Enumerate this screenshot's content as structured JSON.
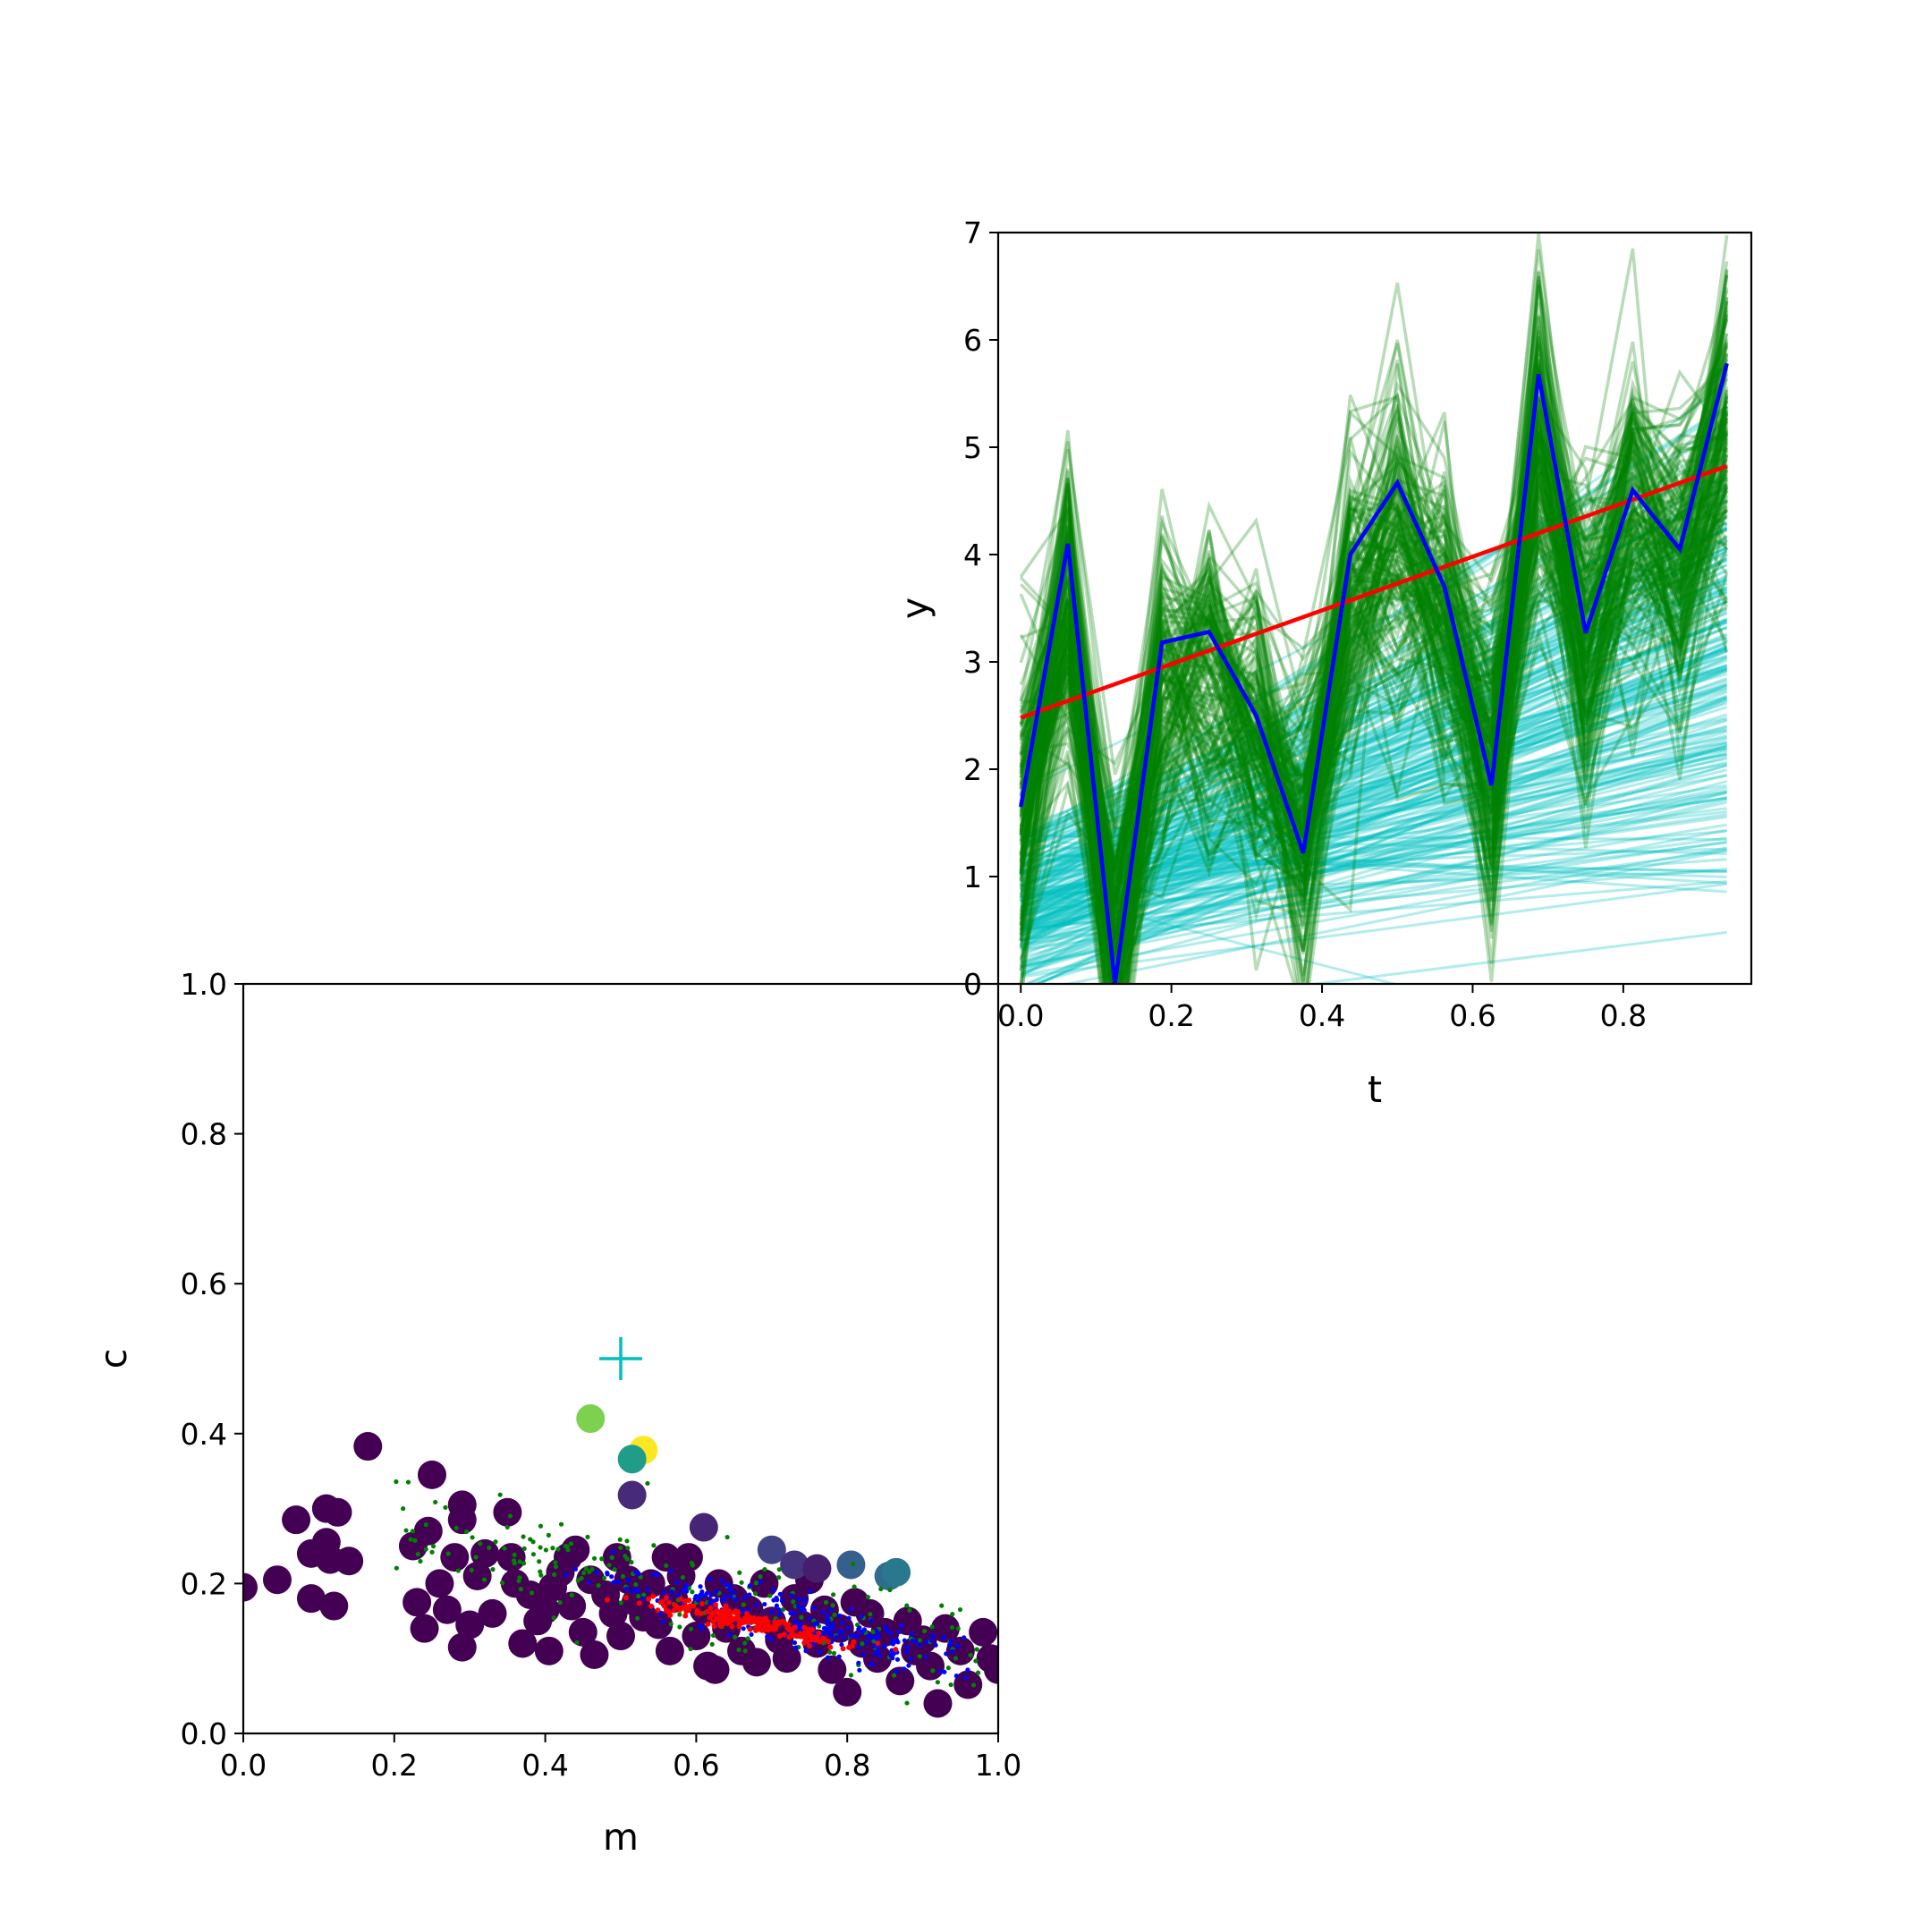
{
  "chart_data": [
    {
      "type": "line",
      "xlabel": "t",
      "ylabel": "y",
      "xlim": [
        -0.03,
        0.97
      ],
      "ylim": [
        0,
        7
      ],
      "xticks": [
        "0.0",
        "0.2",
        "0.4",
        "0.6",
        "0.8"
      ],
      "yticks": [
        "0",
        "1",
        "2",
        "3",
        "4",
        "5",
        "6",
        "7"
      ],
      "x": [
        0.0,
        0.0625,
        0.125,
        0.1875,
        0.25,
        0.3125,
        0.375,
        0.4375,
        0.5,
        0.5625,
        0.625,
        0.6875,
        0.75,
        0.8125,
        0.875,
        0.9375
      ],
      "observed": [
        1.65,
        4.1,
        0.0,
        3.18,
        3.28,
        2.5,
        1.22,
        4.0,
        4.67,
        3.7,
        1.85,
        5.68,
        3.27,
        4.6,
        4.05,
        5.78
      ],
      "true_line": {
        "m": 2.5,
        "c": 2.48
      },
      "posterior_sample_lines_count": 220,
      "posterior_predictive_traces_count": 160,
      "colors": {
        "observed": "#0000ff",
        "true_line": "#ff0000",
        "sample_lines": "#00bfbf",
        "predictive": "#008000"
      },
      "grid": false
    },
    {
      "type": "scatter",
      "xlabel": "m",
      "ylabel": "c",
      "xlim": [
        0,
        1
      ],
      "ylim": [
        0,
        1
      ],
      "xticks": [
        "0.0",
        "0.2",
        "0.4",
        "0.6",
        "0.8",
        "1.0"
      ],
      "yticks": [
        "0.0",
        "0.2",
        "0.4",
        "0.6",
        "0.8",
        "1.0"
      ],
      "true_value": {
        "m": 0.5,
        "c": 0.5,
        "marker": "+",
        "color": "#00bfbf"
      },
      "colormap": "viridis",
      "walkers": [
        [
          0.0,
          0.195,
          0
        ],
        [
          0.045,
          0.205,
          0
        ],
        [
          0.07,
          0.285,
          0
        ],
        [
          0.09,
          0.24,
          0
        ],
        [
          0.09,
          0.18,
          0
        ],
        [
          0.11,
          0.3,
          0
        ],
        [
          0.11,
          0.255,
          0
        ],
        [
          0.115,
          0.232,
          0
        ],
        [
          0.12,
          0.17,
          0
        ],
        [
          0.125,
          0.295,
          0
        ],
        [
          0.14,
          0.23,
          0
        ],
        [
          0.165,
          0.383,
          0
        ],
        [
          0.225,
          0.25,
          0
        ],
        [
          0.23,
          0.175,
          0
        ],
        [
          0.24,
          0.14,
          0
        ],
        [
          0.245,
          0.27,
          0
        ],
        [
          0.25,
          0.345,
          0
        ],
        [
          0.26,
          0.2,
          0
        ],
        [
          0.27,
          0.165,
          0
        ],
        [
          0.28,
          0.235,
          0
        ],
        [
          0.29,
          0.305,
          0
        ],
        [
          0.29,
          0.285,
          0
        ],
        [
          0.29,
          0.115,
          0
        ],
        [
          0.3,
          0.145,
          0
        ],
        [
          0.31,
          0.21,
          0
        ],
        [
          0.32,
          0.24,
          0
        ],
        [
          0.33,
          0.16,
          0
        ],
        [
          0.35,
          0.295,
          0
        ],
        [
          0.355,
          0.235,
          0
        ],
        [
          0.36,
          0.2,
          0
        ],
        [
          0.37,
          0.12,
          0
        ],
        [
          0.38,
          0.185,
          0
        ],
        [
          0.39,
          0.15,
          0
        ],
        [
          0.4,
          0.165,
          0
        ],
        [
          0.405,
          0.11,
          0
        ],
        [
          0.41,
          0.195,
          0
        ],
        [
          0.42,
          0.215,
          0
        ],
        [
          0.43,
          0.235,
          0
        ],
        [
          0.435,
          0.17,
          0
        ],
        [
          0.44,
          0.245,
          0
        ],
        [
          0.45,
          0.135,
          0
        ],
        [
          0.46,
          0.205,
          0
        ],
        [
          0.465,
          0.105,
          0
        ],
        [
          0.48,
          0.185,
          0
        ],
        [
          0.49,
          0.16,
          0
        ],
        [
          0.495,
          0.235,
          0
        ],
        [
          0.5,
          0.13,
          0
        ],
        [
          0.51,
          0.205,
          0
        ],
        [
          0.52,
          0.175,
          0
        ],
        [
          0.53,
          0.155,
          0
        ],
        [
          0.54,
          0.2,
          0
        ],
        [
          0.55,
          0.145,
          0
        ],
        [
          0.56,
          0.235,
          0
        ],
        [
          0.565,
          0.11,
          0
        ],
        [
          0.57,
          0.18,
          0
        ],
        [
          0.58,
          0.21,
          0
        ],
        [
          0.59,
          0.235,
          0
        ],
        [
          0.6,
          0.13,
          0
        ],
        [
          0.61,
          0.165,
          0
        ],
        [
          0.615,
          0.09,
          0
        ],
        [
          0.625,
          0.085,
          0
        ],
        [
          0.63,
          0.2,
          0
        ],
        [
          0.64,
          0.14,
          0
        ],
        [
          0.65,
          0.18,
          0
        ],
        [
          0.66,
          0.11,
          0
        ],
        [
          0.67,
          0.165,
          0
        ],
        [
          0.68,
          0.095,
          0
        ],
        [
          0.69,
          0.2,
          0
        ],
        [
          0.7,
          0.15,
          0.02
        ],
        [
          0.71,
          0.125,
          0
        ],
        [
          0.72,
          0.1,
          0
        ],
        [
          0.73,
          0.18,
          0
        ],
        [
          0.74,
          0.145,
          0
        ],
        [
          0.75,
          0.205,
          0
        ],
        [
          0.76,
          0.12,
          0
        ],
        [
          0.77,
          0.165,
          0
        ],
        [
          0.78,
          0.085,
          0
        ],
        [
          0.79,
          0.14,
          0
        ],
        [
          0.8,
          0.055,
          0
        ],
        [
          0.81,
          0.175,
          0
        ],
        [
          0.82,
          0.12,
          0
        ],
        [
          0.83,
          0.16,
          0
        ],
        [
          0.84,
          0.1,
          0
        ],
        [
          0.85,
          0.135,
          0
        ],
        [
          0.87,
          0.07,
          0
        ],
        [
          0.88,
          0.15,
          0
        ],
        [
          0.89,
          0.11,
          0
        ],
        [
          0.9,
          0.125,
          0
        ],
        [
          0.91,
          0.09,
          0
        ],
        [
          0.92,
          0.04,
          0
        ],
        [
          0.93,
          0.14,
          0
        ],
        [
          0.95,
          0.11,
          0
        ],
        [
          0.96,
          0.065,
          0
        ],
        [
          0.98,
          0.135,
          0
        ],
        [
          0.99,
          0.1,
          0
        ],
        [
          1.0,
          0.085,
          0
        ],
        [
          0.46,
          0.42,
          0.8
        ],
        [
          0.53,
          0.378,
          1.0
        ],
        [
          0.515,
          0.366,
          0.55
        ],
        [
          0.515,
          0.318,
          0.12
        ],
        [
          0.61,
          0.275,
          0.1
        ],
        [
          0.7,
          0.245,
          0.2
        ],
        [
          0.73,
          0.225,
          0.15
        ],
        [
          0.76,
          0.22,
          0.08
        ],
        [
          0.805,
          0.225,
          0.3
        ],
        [
          0.855,
          0.21,
          0.35
        ],
        [
          0.865,
          0.215,
          0.4
        ]
      ],
      "posterior_points_red_count": 200,
      "posterior_points_blue_count": 260,
      "posterior_points_green_count": 220,
      "colors": {
        "red": "#ff0000",
        "blue": "#0000ff",
        "green": "#008000"
      },
      "grid": false
    }
  ]
}
